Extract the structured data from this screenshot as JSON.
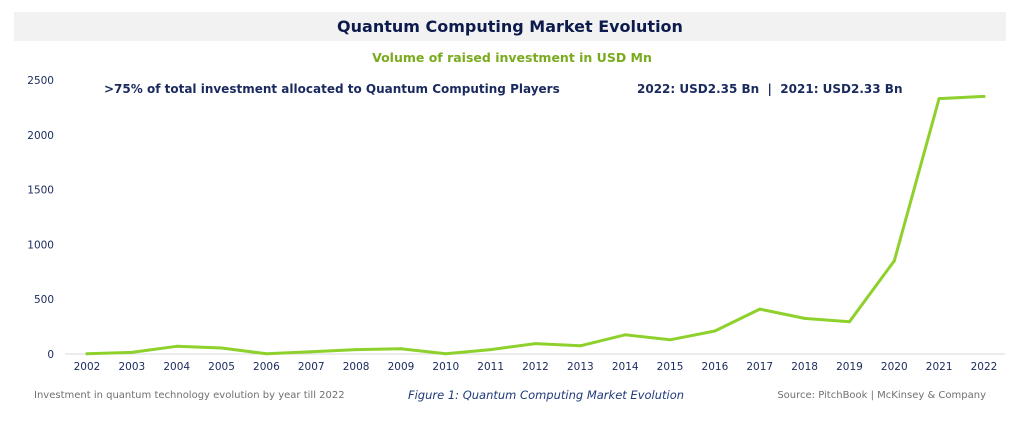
{
  "header": {
    "title": "Quantum Computing Market Evolution",
    "subtitle": "Volume of raised investment in USD Mn"
  },
  "annotations": {
    "left": ">75% of total investment allocated to Quantum Computing Players",
    "right": "2022: USD2.35 Bn  |  2021: USD2.33 Bn"
  },
  "footer": {
    "left": "Investment in quantum technology evolution by year till 2022",
    "center": "Figure 1: Quantum Computing Market Evolution",
    "right": "Source: PitchBook | McKinsey & Company"
  },
  "colors": {
    "line": "#8fd12c",
    "axis_text": "#1a2a5e",
    "title": "#0d1b4c",
    "subtitle": "#7aab1e"
  },
  "chart_data": {
    "type": "line",
    "title": "Quantum Computing Market Evolution",
    "subtitle": "Volume of raised investment in USD Mn",
    "xlabel": "",
    "ylabel": "",
    "categories": [
      "2002",
      "2003",
      "2004",
      "2005",
      "2006",
      "2007",
      "2008",
      "2009",
      "2010",
      "2011",
      "2012",
      "2013",
      "2014",
      "2015",
      "2016",
      "2017",
      "2018",
      "2019",
      "2020",
      "2021",
      "2022"
    ],
    "series": [
      {
        "values": [
          2,
          15,
          70,
          55,
          2,
          20,
          40,
          48,
          2,
          40,
          95,
          75,
          175,
          130,
          210,
          410,
          325,
          295,
          850,
          2330,
          2350
        ]
      }
    ],
    "ylim": [
      0,
      2500
    ],
    "yticks": [
      0,
      500,
      1000,
      1500,
      2000,
      2500
    ],
    "grid": false,
    "legend": "none"
  }
}
